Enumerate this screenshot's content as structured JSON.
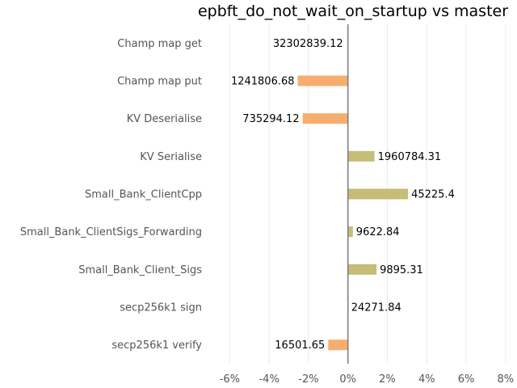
{
  "chart_data": {
    "type": "bar",
    "orientation": "horizontal",
    "title": "epbft_do_not_wait_on_startup vs master",
    "xlabel": "",
    "ylabel": "",
    "xlim": [
      -0.07,
      0.085
    ],
    "x_ticks": [
      -0.06,
      -0.04,
      -0.02,
      0,
      0.02,
      0.04,
      0.06,
      0.08
    ],
    "x_tick_labels": [
      "-6%",
      "-4%",
      "-2%",
      "0%",
      "2%",
      "4%",
      "6%",
      "8%"
    ],
    "grid": true,
    "colors": {
      "negative": "#f6ae6f",
      "positive": "#c5bd78",
      "zero_line": "#808080"
    },
    "categories": [
      "Champ map get",
      "Champ map put",
      "KV Deserialise",
      "KV Serialise",
      "Small_Bank_ClientCpp",
      "Small_Bank_ClientSigs_Forwarding",
      "Small_Bank_Client_Sigs",
      "secp256k1 sign",
      "secp256k1 verify"
    ],
    "values": [
      0.0,
      -0.0255,
      -0.023,
      0.0135,
      0.0305,
      0.0025,
      0.0145,
      0.0,
      -0.01
    ],
    "data_labels": [
      "32302839.12",
      "1241806.68",
      "735294.12",
      "1960784.31",
      "45225.4",
      "9622.84",
      "9895.31",
      "24271.84",
      "16501.65"
    ]
  }
}
